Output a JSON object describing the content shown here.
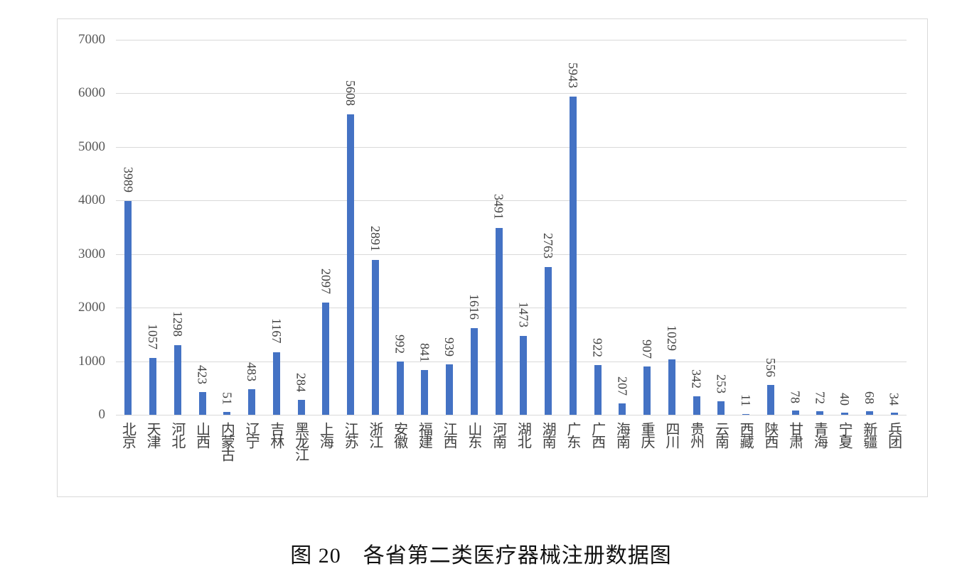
{
  "caption": {
    "prefix": "图 20",
    "title": "各省第二类医疗器械注册数据图"
  },
  "chart_data": {
    "type": "bar",
    "title": "各省第二类医疗器械注册数据图",
    "xlabel": "",
    "ylabel": "",
    "ylim": [
      0,
      7000
    ],
    "yticks": [
      0,
      1000,
      2000,
      3000,
      4000,
      5000,
      6000,
      7000
    ],
    "grid": true,
    "legend": "none",
    "bar_color": "#4472c4",
    "categories": [
      "北京",
      "天津",
      "河北",
      "山西",
      "内蒙古",
      "辽宁",
      "吉林",
      "黑龙江",
      "上海",
      "江苏",
      "浙江",
      "安徽",
      "福建",
      "江西",
      "山东",
      "河南",
      "湖北",
      "湖南",
      "广东",
      "广西",
      "海南",
      "重庆",
      "四川",
      "贵州",
      "云南",
      "西藏",
      "陕西",
      "甘肃",
      "青海",
      "宁夏",
      "新疆",
      "兵团"
    ],
    "values": [
      3989,
      1057,
      1298,
      423,
      51,
      483,
      1167,
      284,
      2097,
      5608,
      2891,
      992,
      841,
      939,
      1616,
      3491,
      1473,
      2763,
      5943,
      922,
      207,
      907,
      1029,
      342,
      253,
      11,
      556,
      78,
      72,
      40,
      68,
      34
    ]
  }
}
